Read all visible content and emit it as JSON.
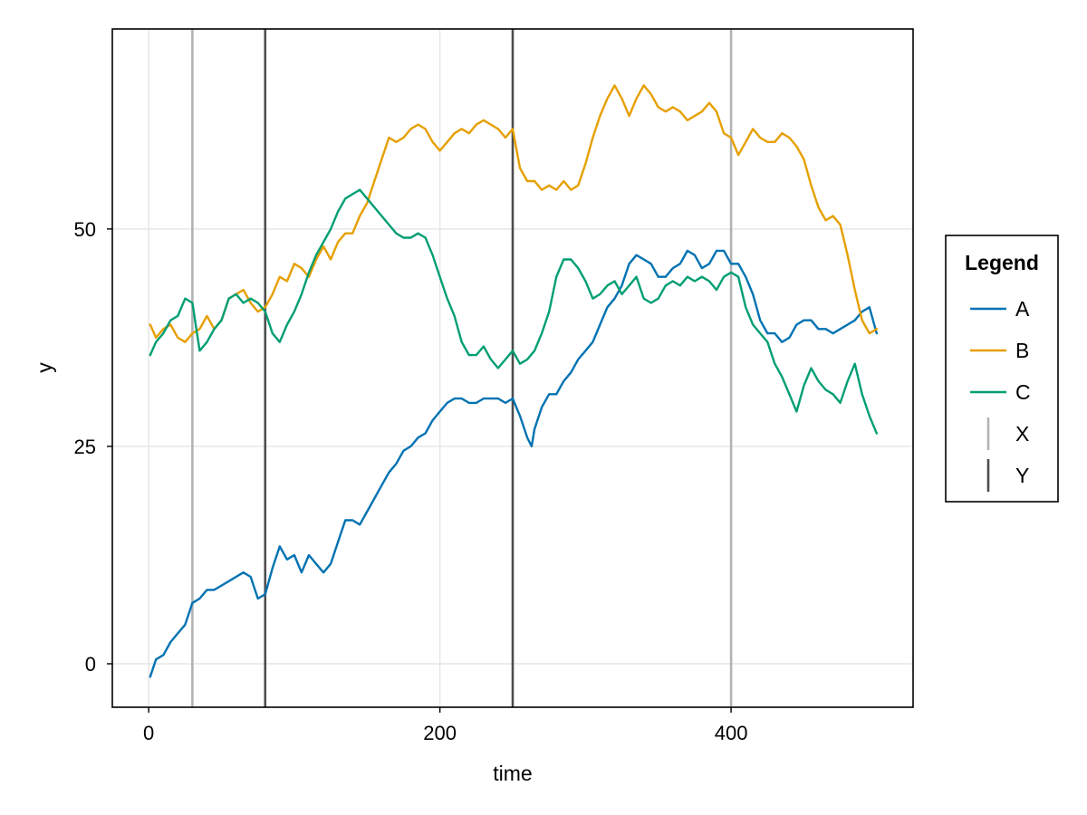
{
  "chart_data": {
    "type": "line",
    "title": "",
    "xlabel": "time",
    "ylabel": "y",
    "xlim": [
      -25,
      525
    ],
    "ylim": [
      -5,
      73
    ],
    "xticks": [
      0,
      200,
      400
    ],
    "yticks": [
      0,
      25,
      50
    ],
    "grid": true,
    "legend": {
      "title": "Legend",
      "placement": "right",
      "entries": [
        {
          "label": "A",
          "kind": "line",
          "color": "#0072B2"
        },
        {
          "label": "B",
          "kind": "line",
          "color": "#E69F00"
        },
        {
          "label": "C",
          "kind": "line",
          "color": "#009E73"
        },
        {
          "label": "X",
          "kind": "vline",
          "color": "#b3b3b3"
        },
        {
          "label": "Y",
          "kind": "vline",
          "color": "#4d4d4d"
        }
      ]
    },
    "vlines": [
      {
        "name": "X",
        "color": "#b3b3b3",
        "x": [
          30,
          400
        ]
      },
      {
        "name": "Y",
        "color": "#4d4d4d",
        "x": [
          80,
          250
        ]
      }
    ],
    "series": [
      {
        "name": "A",
        "color": "#0072B2",
        "x": [
          1,
          5,
          10,
          15,
          20,
          25,
          30,
          35,
          40,
          45,
          50,
          55,
          60,
          65,
          70,
          75,
          80,
          85,
          90,
          95,
          100,
          105,
          110,
          115,
          120,
          125,
          130,
          135,
          140,
          145,
          150,
          155,
          160,
          165,
          170,
          175,
          180,
          185,
          190,
          195,
          200,
          205,
          210,
          215,
          220,
          225,
          230,
          235,
          240,
          245,
          250,
          255,
          260,
          263,
          265,
          270,
          275,
          280,
          285,
          290,
          295,
          300,
          305,
          310,
          315,
          320,
          325,
          330,
          335,
          340,
          345,
          350,
          355,
          360,
          365,
          370,
          375,
          380,
          385,
          390,
          395,
          400,
          405,
          410,
          415,
          420,
          425,
          430,
          435,
          440,
          445,
          450,
          455,
          460,
          465,
          470,
          475,
          480,
          485,
          490,
          495,
          500
        ],
        "y": [
          -1.5,
          0.5,
          1.0,
          2.5,
          3.5,
          4.5,
          7.0,
          7.5,
          8.5,
          8.5,
          9.0,
          9.5,
          10.0,
          10.5,
          10.0,
          7.5,
          8.0,
          11.0,
          13.5,
          12.0,
          12.5,
          10.5,
          12.5,
          11.5,
          10.5,
          11.5,
          14.0,
          16.5,
          16.5,
          16.0,
          17.5,
          19.0,
          20.5,
          22.0,
          23.0,
          24.5,
          25.0,
          26.0,
          26.5,
          28.0,
          29.0,
          30.0,
          30.5,
          30.5,
          30.0,
          30.0,
          30.5,
          30.5,
          30.5,
          30.0,
          30.5,
          28.5,
          26.0,
          25.0,
          27.0,
          29.5,
          31.0,
          31.0,
          32.5,
          33.5,
          35.0,
          36.0,
          37.0,
          39.0,
          41.0,
          42.0,
          43.5,
          46.0,
          47.0,
          46.5,
          46.0,
          44.5,
          44.5,
          45.5,
          46.0,
          47.5,
          47.0,
          45.5,
          46.0,
          47.5,
          47.5,
          46.0,
          46.0,
          44.5,
          42.5,
          39.5,
          38.0,
          38.0,
          37.0,
          37.5,
          39.0,
          39.5,
          39.5,
          38.5,
          38.5,
          38.0,
          38.5,
          39.0,
          39.5,
          40.5,
          41.0,
          38.0
        ]
      },
      {
        "name": "B",
        "color": "#E69F00",
        "x": [
          1,
          5,
          10,
          15,
          20,
          25,
          30,
          35,
          40,
          45,
          50,
          55,
          60,
          65,
          70,
          75,
          80,
          85,
          90,
          95,
          100,
          105,
          110,
          115,
          120,
          125,
          130,
          135,
          140,
          145,
          150,
          155,
          160,
          165,
          170,
          175,
          180,
          185,
          190,
          195,
          200,
          205,
          210,
          215,
          220,
          225,
          230,
          235,
          240,
          245,
          250,
          255,
          260,
          265,
          270,
          275,
          280,
          285,
          290,
          295,
          300,
          305,
          310,
          315,
          320,
          325,
          330,
          335,
          340,
          345,
          350,
          355,
          360,
          365,
          370,
          375,
          380,
          385,
          390,
          395,
          400,
          405,
          410,
          415,
          420,
          425,
          430,
          435,
          440,
          445,
          450,
          455,
          460,
          465,
          470,
          475,
          480,
          485,
          490,
          495,
          500
        ],
        "y": [
          39.0,
          37.5,
          38.5,
          39.0,
          37.5,
          37.0,
          38.0,
          38.5,
          40.0,
          38.5,
          39.5,
          42.0,
          42.5,
          43.0,
          41.5,
          40.5,
          41.0,
          42.5,
          44.5,
          44.0,
          46.0,
          45.5,
          44.5,
          46.5,
          48.0,
          46.5,
          48.5,
          49.5,
          49.5,
          51.5,
          53.0,
          55.5,
          58.0,
          60.5,
          60.0,
          60.5,
          61.5,
          62.0,
          61.5,
          60.0,
          59.0,
          60.0,
          61.0,
          61.5,
          61.0,
          62.0,
          62.5,
          62.0,
          61.5,
          60.5,
          61.5,
          57.0,
          55.5,
          55.5,
          54.5,
          55.0,
          54.5,
          55.5,
          54.5,
          55.0,
          57.5,
          60.5,
          63.0,
          65.0,
          66.5,
          65.0,
          63.0,
          65.0,
          66.5,
          65.5,
          64.0,
          63.5,
          64.0,
          63.5,
          62.5,
          63.0,
          63.5,
          64.5,
          63.5,
          61.0,
          60.5,
          58.5,
          60.0,
          61.5,
          60.5,
          60.0,
          60.0,
          61.0,
          60.5,
          59.5,
          58.0,
          55.0,
          52.5,
          51.0,
          51.5,
          50.5,
          47.0,
          43.0,
          39.5,
          38.0,
          38.5
        ]
      },
      {
        "name": "C",
        "color": "#009E73",
        "x": [
          1,
          5,
          10,
          15,
          20,
          25,
          30,
          35,
          40,
          45,
          50,
          55,
          60,
          65,
          70,
          75,
          80,
          85,
          90,
          95,
          100,
          105,
          110,
          115,
          120,
          125,
          130,
          135,
          140,
          145,
          150,
          155,
          160,
          165,
          170,
          175,
          180,
          185,
          190,
          195,
          200,
          205,
          210,
          215,
          220,
          225,
          230,
          235,
          240,
          245,
          250,
          255,
          260,
          265,
          270,
          275,
          280,
          285,
          290,
          295,
          300,
          305,
          310,
          315,
          320,
          325,
          330,
          335,
          340,
          345,
          350,
          355,
          360,
          365,
          370,
          375,
          380,
          385,
          390,
          395,
          400,
          405,
          410,
          415,
          420,
          425,
          430,
          435,
          440,
          445,
          450,
          455,
          460,
          465,
          470,
          475,
          480,
          485,
          490,
          495,
          500
        ],
        "y": [
          35.5,
          37.0,
          38.0,
          39.5,
          40.0,
          42.0,
          41.5,
          36.0,
          37.0,
          38.5,
          39.5,
          42.0,
          42.5,
          41.5,
          42.0,
          41.5,
          40.5,
          38.0,
          37.0,
          39.0,
          40.5,
          42.5,
          45.0,
          47.0,
          48.5,
          50.0,
          52.0,
          53.5,
          54.0,
          54.5,
          53.5,
          52.5,
          51.5,
          50.5,
          49.5,
          49.0,
          49.0,
          49.5,
          49.0,
          47.0,
          44.5,
          42.0,
          40.0,
          37.0,
          35.5,
          35.5,
          36.5,
          35.0,
          34.0,
          35.0,
          36.0,
          34.5,
          35.0,
          36.0,
          38.0,
          40.5,
          44.5,
          46.5,
          46.5,
          45.5,
          44.0,
          42.0,
          42.5,
          43.5,
          44.0,
          42.5,
          43.5,
          44.5,
          42.0,
          41.5,
          42.0,
          43.5,
          44.0,
          43.5,
          44.5,
          44.0,
          44.5,
          44.0,
          43.0,
          44.5,
          45.0,
          44.5,
          41.0,
          39.0,
          38.0,
          37.0,
          34.5,
          33.0,
          31.0,
          29.0,
          32.0,
          34.0,
          32.5,
          31.5,
          31.0,
          30.0,
          32.5,
          34.5,
          31.0,
          28.5,
          26.5
        ]
      }
    ]
  }
}
